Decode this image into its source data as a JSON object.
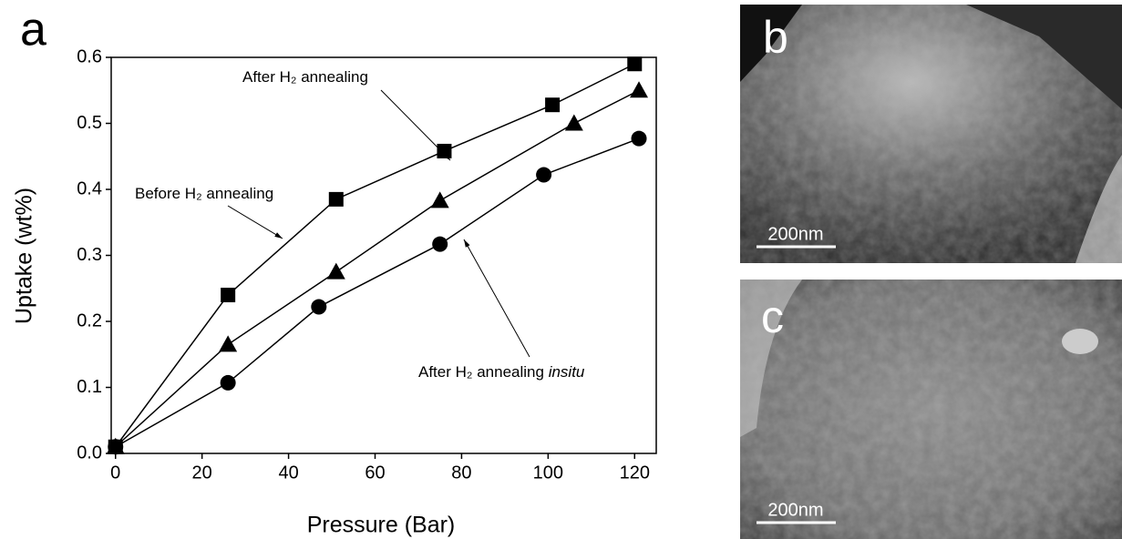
{
  "chart_data": {
    "type": "line",
    "panel_label": "a",
    "x_label": "Pressure (Bar)",
    "y_label": "Uptake (wt%)",
    "xlim": [
      -1,
      125
    ],
    "xticks": [
      0,
      20,
      40,
      60,
      80,
      100,
      120
    ],
    "ylim": [
      0,
      0.6
    ],
    "yticks": [
      {
        "value": 0,
        "label": "0.0"
      },
      0.1,
      0.2,
      0.3,
      0.4,
      0.5,
      0.6
    ],
    "series": [
      {
        "color": "#000000",
        "marker": "square",
        "x": [
          0,
          26,
          51,
          76,
          101,
          120
        ],
        "values": [
          0.01,
          0.24,
          0.385,
          0.458,
          0.528,
          0.59
        ]
      },
      {
        "color": "#000000",
        "marker": "triangle",
        "x": [
          0,
          26,
          51,
          75,
          106,
          121
        ],
        "values": [
          0.01,
          0.165,
          0.275,
          0.383,
          0.5,
          0.55
        ]
      },
      {
        "color": "#000000",
        "marker": "circle",
        "x": [
          0,
          26,
          47,
          75,
          99,
          121
        ],
        "values": [
          0.01,
          0.107,
          0.222,
          0.317,
          0.422,
          0.477
        ]
      }
    ],
    "annotations": [
      {
        "text": "After H₂ annealing"
      },
      {
        "text": "Before H₂ annealing"
      },
      {
        "text": "After H₂ annealing",
        "italic": "insitu"
      }
    ]
  },
  "images": [
    {
      "label": "b",
      "scale_bar": "200nm"
    },
    {
      "label": "c",
      "scale_bar": "200nm"
    }
  ]
}
